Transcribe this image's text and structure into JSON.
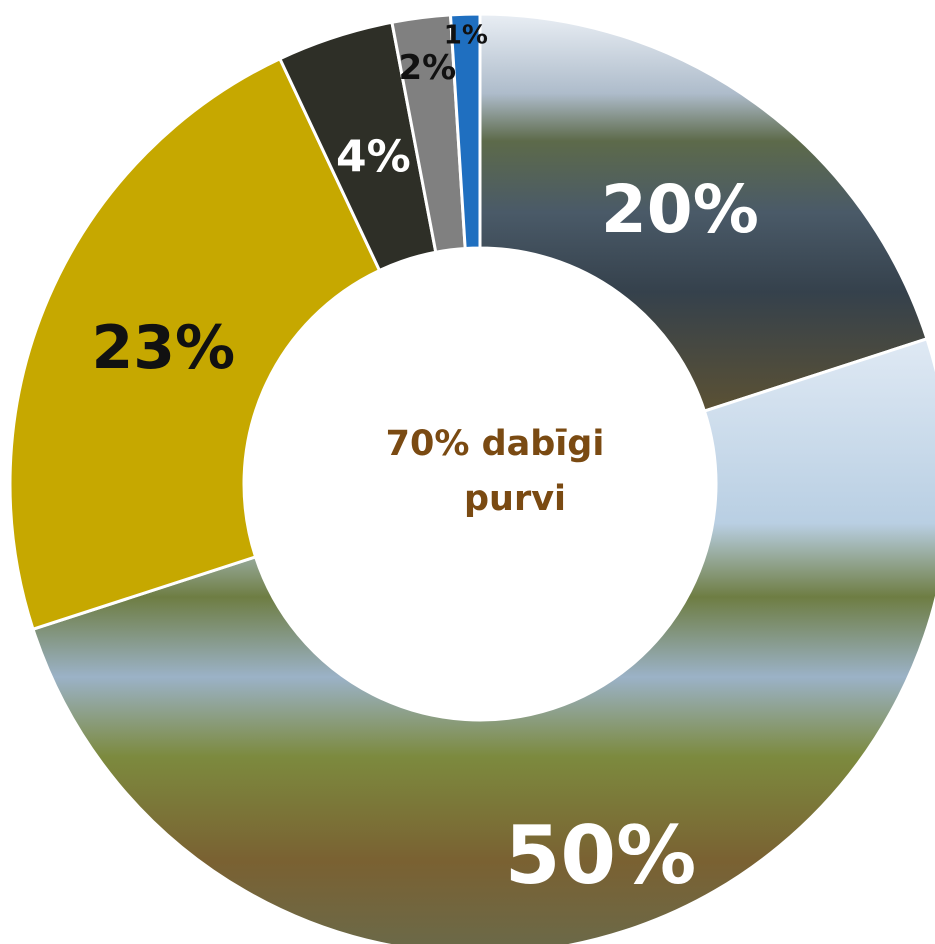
{
  "chart_data": {
    "type": "pie",
    "style": "donut",
    "slices": [
      {
        "label": "20%",
        "value": 20,
        "color": "#4c5a66",
        "fill_kind": "photo-bog-pool",
        "label_color": "#ffffff"
      },
      {
        "label": "50%",
        "value": 50,
        "color": "#6f6a3a",
        "fill_kind": "photo-bog-meadow",
        "label_color": "#ffffff"
      },
      {
        "label": "23%",
        "value": 23,
        "color": "#c6a800",
        "fill_kind": "solid",
        "label_color": "#111111"
      },
      {
        "label": "4%",
        "value": 4,
        "color": "#2e2f27",
        "fill_kind": "solid",
        "label_color": "#ffffff"
      },
      {
        "label": "2%",
        "value": 2,
        "color": "#808080",
        "fill_kind": "solid",
        "label_color": "#111111"
      },
      {
        "label": "1%",
        "value": 1,
        "color": "#1f6fc0",
        "fill_kind": "solid",
        "label_color": "#111111"
      }
    ],
    "center_label": [
      "70% dabīgi",
      "purvi"
    ],
    "center_label_color": "#7a4a12"
  }
}
